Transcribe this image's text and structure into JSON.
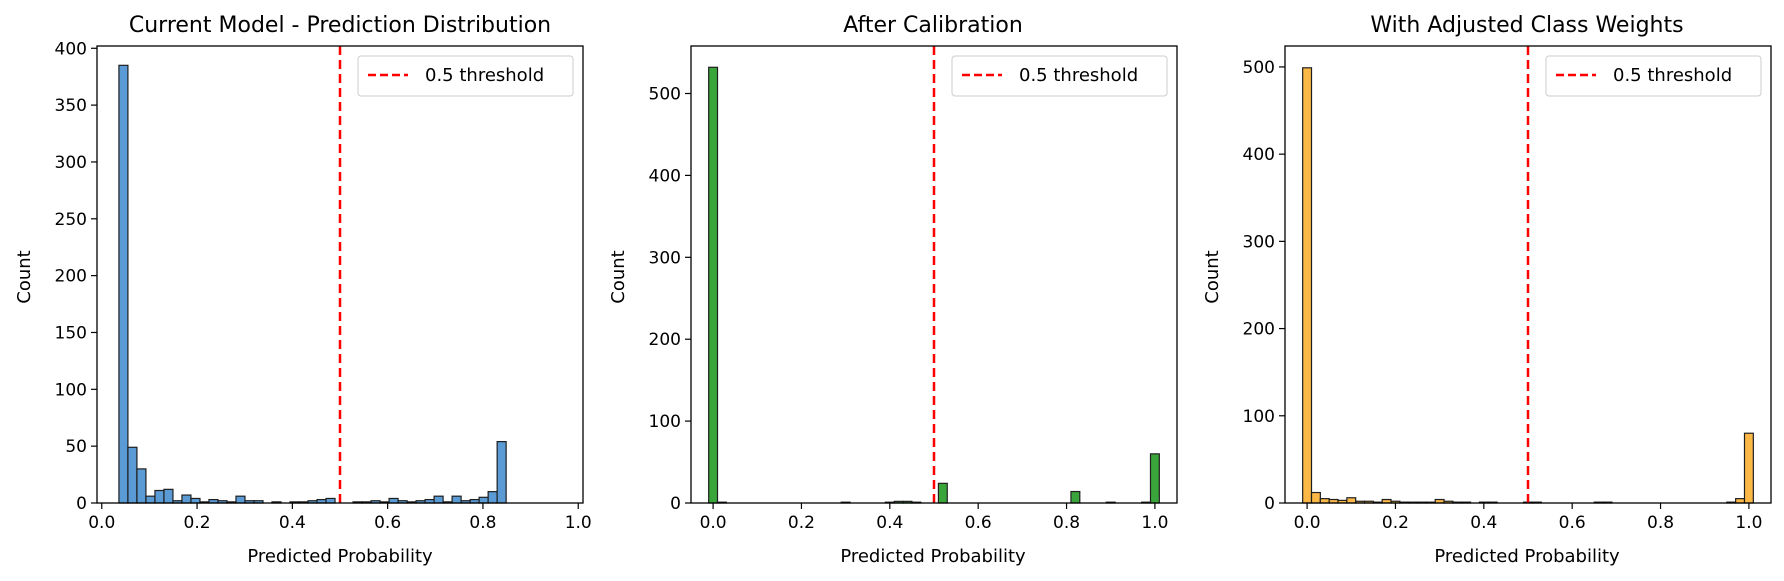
{
  "chart_data": [
    {
      "type": "bar",
      "title": "Current Model - Prediction Distribution",
      "xlabel": "Predicted Probability",
      "ylabel": "Count",
      "xlim": [
        -0.01,
        1.01
      ],
      "ylim": [
        0,
        402
      ],
      "xticks": [
        0.0,
        0.2,
        0.4,
        0.6,
        0.8,
        1.0
      ],
      "xtick_labels": [
        "0.0",
        "0.2",
        "0.4",
        "0.6",
        "0.8",
        "1.0"
      ],
      "yticks": [
        0,
        50,
        100,
        150,
        200,
        250,
        300,
        350,
        400
      ],
      "ytick_labels": [
        "0",
        "50",
        "100",
        "150",
        "200",
        "250",
        "300",
        "350",
        "400"
      ],
      "bin_start": 0.036,
      "bin_width": 0.0189,
      "values": [
        385,
        49,
        30,
        6,
        11,
        12,
        2,
        7,
        4,
        1,
        3,
        2,
        1,
        6,
        2,
        2,
        0,
        1,
        0,
        1,
        1,
        2,
        3,
        4,
        0,
        0,
        1,
        1,
        2,
        1,
        4,
        2,
        1,
        2,
        3,
        6,
        1,
        6,
        2,
        3,
        5,
        10,
        54
      ],
      "color": "#5b9bd5",
      "edge_color": "#1f1f1f",
      "threshold": 0.5,
      "threshold_color": "#ff0000",
      "legend": "0.5 threshold",
      "legend_position": "top-right",
      "grid": false
    },
    {
      "type": "bar",
      "title": "After Calibration",
      "xlabel": "Predicted Probability",
      "ylabel": "Count",
      "xlim": [
        -0.05,
        1.05
      ],
      "ylim": [
        0,
        558
      ],
      "xticks": [
        0.0,
        0.2,
        0.4,
        0.6,
        0.8,
        1.0
      ],
      "xtick_labels": [
        "0.0",
        "0.2",
        "0.4",
        "0.6",
        "0.8",
        "1.0"
      ],
      "yticks": [
        0,
        100,
        200,
        300,
        400,
        500
      ],
      "ytick_labels": [
        "0",
        "100",
        "200",
        "300",
        "400",
        "500"
      ],
      "bin_start": -0.01,
      "bin_width": 0.02,
      "values": [
        532,
        1,
        0,
        0,
        0,
        0,
        0,
        0,
        0,
        0,
        0,
        0,
        0,
        0,
        0,
        1,
        0,
        0,
        0,
        0,
        1,
        2,
        2,
        1,
        0,
        0,
        24,
        0,
        0,
        0,
        0,
        0,
        0,
        0,
        0,
        0,
        0,
        0,
        0,
        0,
        0,
        14,
        0,
        0,
        0,
        1,
        0,
        0,
        0,
        1,
        60
      ],
      "color": "#3aa53a",
      "edge_color": "#1f1f1f",
      "threshold": 0.5,
      "threshold_color": "#ff0000",
      "legend": "0.5 threshold",
      "legend_position": "top-right",
      "grid": false
    },
    {
      "type": "bar",
      "title": "With Adjusted Class Weights",
      "xlabel": "Predicted Probability",
      "ylabel": "Count",
      "xlim": [
        -0.05,
        1.05
      ],
      "ylim": [
        0,
        524
      ],
      "xticks": [
        0.0,
        0.2,
        0.4,
        0.6,
        0.8,
        1.0
      ],
      "xtick_labels": [
        "0.0",
        "0.2",
        "0.4",
        "0.6",
        "0.8",
        "1.0"
      ],
      "yticks": [
        0,
        100,
        200,
        300,
        400,
        500
      ],
      "ytick_labels": [
        "0",
        "100",
        "200",
        "300",
        "400",
        "500"
      ],
      "bin_start": -0.01,
      "bin_width": 0.02,
      "values": [
        499,
        12,
        5,
        4,
        3,
        6,
        2,
        2,
        1,
        4,
        2,
        1,
        1,
        1,
        1,
        4,
        2,
        1,
        1,
        0,
        1,
        1,
        0,
        0,
        0,
        1,
        1,
        0,
        0,
        0,
        0,
        0,
        0,
        1,
        1,
        0,
        0,
        0,
        0,
        0,
        0,
        0,
        0,
        0,
        0,
        0,
        0,
        0,
        1,
        5,
        80
      ],
      "color": "#fbb847",
      "edge_color": "#1f1f1f",
      "threshold": 0.5,
      "threshold_color": "#ff0000",
      "legend": "0.5 threshold",
      "legend_position": "top-right",
      "grid": false
    }
  ]
}
